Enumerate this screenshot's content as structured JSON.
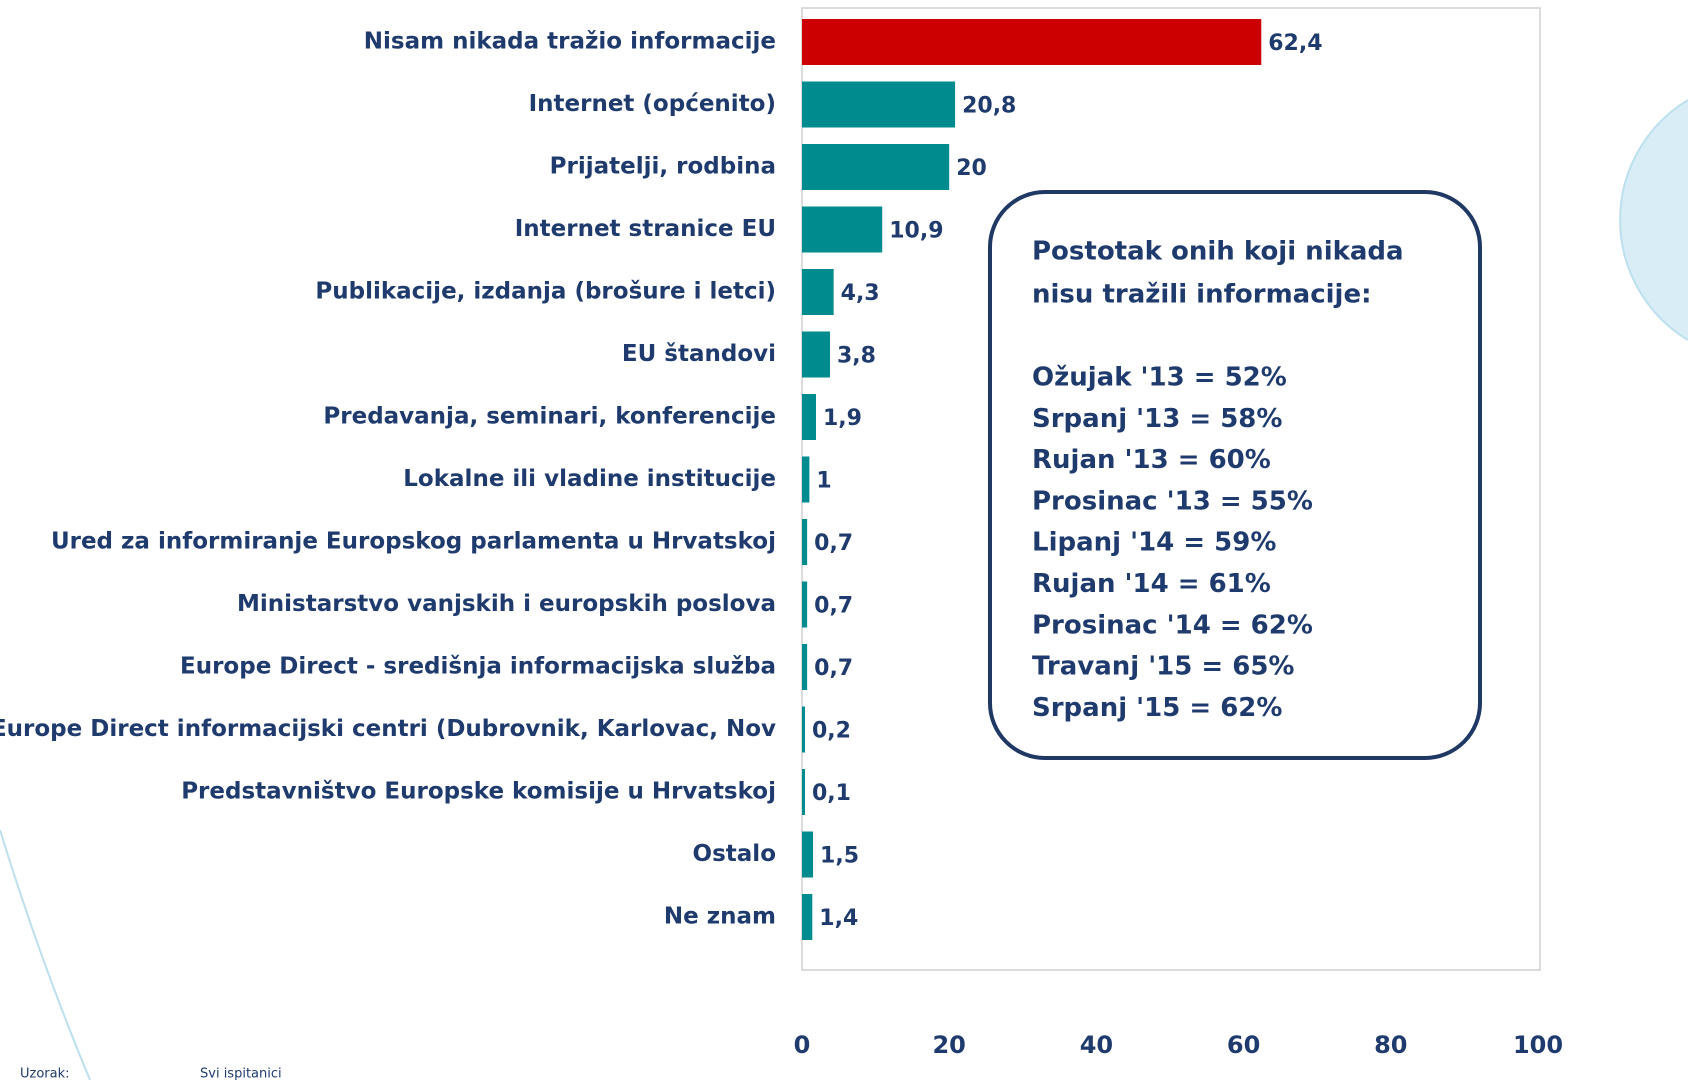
{
  "chart_data": {
    "type": "barh",
    "categories": [
      "Nisam nikada tražio informacije",
      "Internet (općenito)",
      "Prijatelji, rodbina",
      "Internet stranice EU",
      "Publikacije, izdanja (brošure i letci)",
      "EU štandovi",
      "Predavanja, seminari, konferencije",
      "Lokalne ili vladine institucije",
      "Ured za informiranje Europskog parlamenta u Hrvatskoj",
      "Ministarstvo vanjskih i europskih poslova",
      "Europe Direct - središnja informacijska služba",
      "Europe Direct informacijski centri (Dubrovnik, Karlovac, Nov",
      "Predstavništvo Europske komisije u Hrvatskoj",
      "Ostalo",
      "Ne znam"
    ],
    "values": [
      62.4,
      20.8,
      20,
      10.9,
      4.3,
      3.8,
      1.9,
      1,
      0.7,
      0.7,
      0.7,
      0.2,
      0.1,
      1.5,
      1.4
    ],
    "value_labels": [
      "62,4",
      "20,8",
      "20",
      "10,9",
      "4,3",
      "3,8",
      "1,9",
      "1",
      "0,7",
      "0,7",
      "0,7",
      "0,2",
      "0,1",
      "1,5",
      "1,4"
    ],
    "colors": [
      "#cc0000",
      "#008b8e",
      "#008b8e",
      "#008b8e",
      "#008b8e",
      "#008b8e",
      "#008b8e",
      "#008b8e",
      "#008b8e",
      "#008b8e",
      "#008b8e",
      "#008b8e",
      "#008b8e",
      "#008b8e",
      "#008b8e"
    ],
    "xlim": [
      0,
      100
    ],
    "xticks": [
      0,
      20,
      40,
      60,
      80,
      100
    ],
    "grid": false,
    "annotation": {
      "title": [
        "Postotak onih koji nikada",
        "nisu tražili informacije:"
      ],
      "lines": [
        "Ožujak '13 = 52%",
        "Srpanj '13 = 58%",
        "Rujan '13 = 60%",
        "Prosinac '13 = 55%",
        "Lipanj '14 = 59%",
        "Rujan '14 = 61%",
        "Prosinac '14 = 62%",
        "Travanj '15 = 65%",
        "Srpanj '15 = 62%"
      ]
    },
    "footer": [
      "Uzorak:",
      "Svi ispitanici"
    ]
  }
}
